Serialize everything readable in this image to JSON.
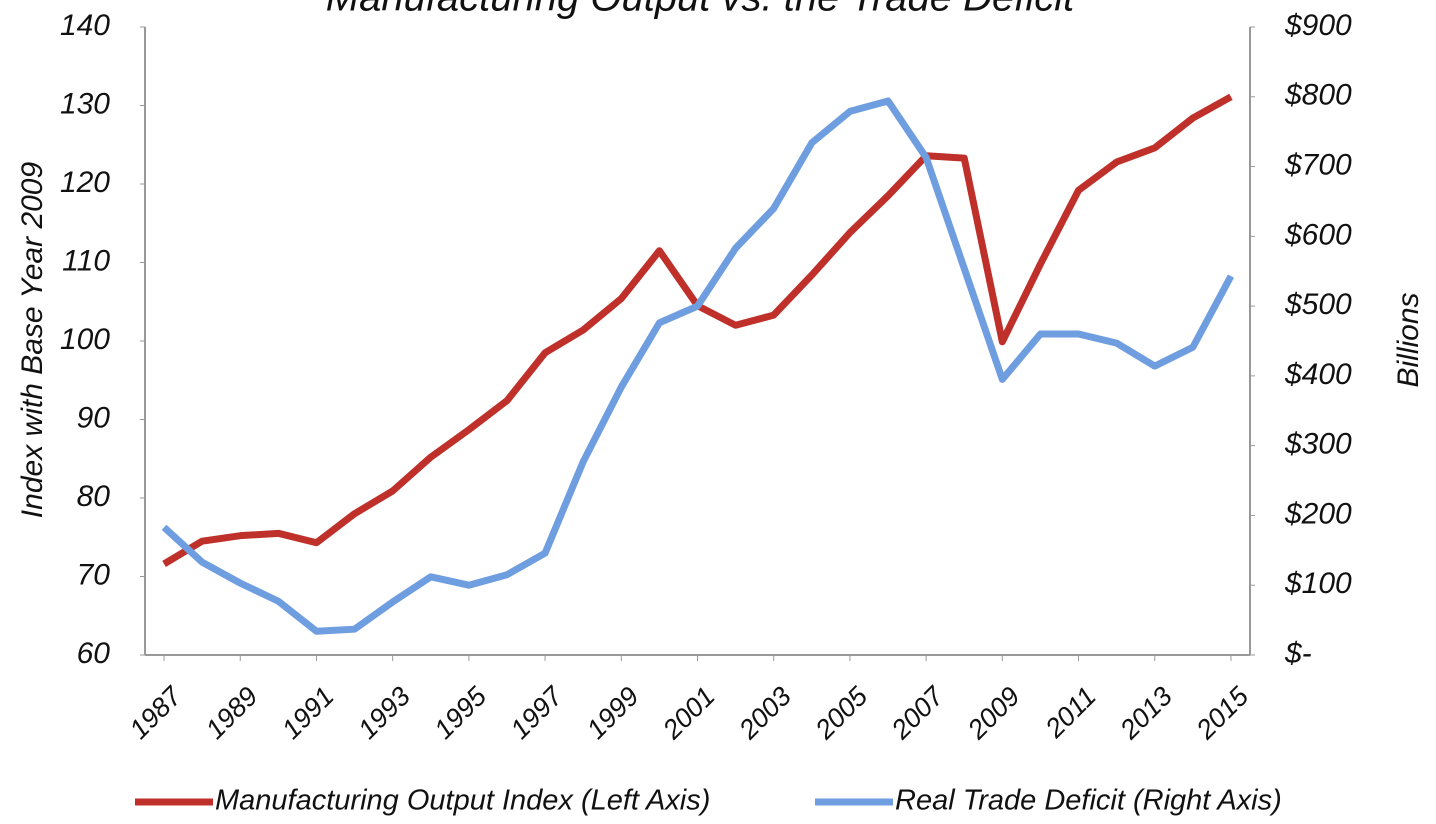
{
  "chart_data": {
    "type": "line",
    "title": "Manufacturing Output vs. the Trade Deficit",
    "y_label": "Index with Base Year 2009",
    "y2_label": "Billions",
    "x": [
      1987,
      1988,
      1989,
      1990,
      1991,
      1992,
      1993,
      1994,
      1995,
      1996,
      1997,
      1998,
      1999,
      2000,
      2001,
      2002,
      2003,
      2004,
      2005,
      2006,
      2007,
      2008,
      2009,
      2010,
      2011,
      2012,
      2013,
      2014,
      2015
    ],
    "xlim": [
      1986.5,
      2015.5
    ],
    "xticks": [
      1987,
      1989,
      1991,
      1993,
      1995,
      1997,
      1999,
      2001,
      2003,
      2005,
      2007,
      2009,
      2011,
      2013,
      2015
    ],
    "ylim": [
      60,
      140
    ],
    "yticks": [
      60,
      70,
      80,
      90,
      100,
      110,
      120,
      130,
      140
    ],
    "y2lim": [
      0,
      900
    ],
    "y2ticks": [
      {
        "value": 0,
        "label": "$-"
      },
      {
        "value": 100,
        "label": "$100"
      },
      {
        "value": 200,
        "label": "$200"
      },
      {
        "value": 300,
        "label": "$300"
      },
      {
        "value": 400,
        "label": "$400"
      },
      {
        "value": 500,
        "label": "$500"
      },
      {
        "value": 600,
        "label": "$600"
      },
      {
        "value": 700,
        "label": "$700"
      },
      {
        "value": 800,
        "label": "$800"
      },
      {
        "value": 900,
        "label": "$900"
      }
    ],
    "legend": "bottom",
    "series": [
      {
        "name": "Manufacturing Output Index (Left Axis)",
        "color": "#c0302a",
        "axis": "y",
        "values": [
          71.6,
          74.5,
          75.2,
          75.5,
          74.3,
          78,
          80.9,
          85.2,
          88.7,
          92.4,
          98.5,
          101.4,
          105.4,
          111.5,
          104.5,
          102,
          103.3,
          108.4,
          113.8,
          118.5,
          123.6,
          123.3,
          99.9,
          109.8,
          119.2,
          122.8,
          124.6,
          128.4,
          131.1
        ]
      },
      {
        "name": "Real Trade Deficit (Right Axis)",
        "color": "#6f9ee0",
        "axis": "y2",
        "values": [
          183,
          133,
          103,
          77,
          34,
          37,
          76,
          112,
          100,
          115,
          146,
          277,
          384,
          476,
          500,
          583,
          640,
          734,
          779,
          794,
          713,
          554,
          395,
          460,
          460,
          447,
          414,
          441,
          543
        ]
      }
    ]
  }
}
